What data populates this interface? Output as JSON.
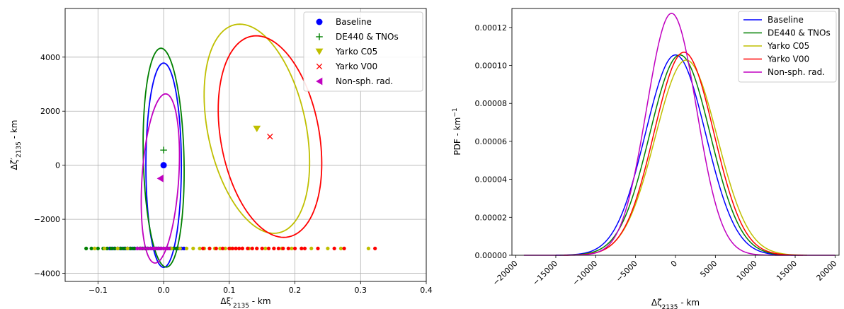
{
  "chart_data": [
    {
      "type": "scatter",
      "xlabel": "Δξ′2135 - km",
      "ylabel": "Δζ′2135 - km",
      "xlim": [
        -0.15,
        0.4
      ],
      "ylim": [
        -4300,
        5800
      ],
      "xticks": [
        -0.1,
        0.0,
        0.1,
        0.2,
        0.3,
        0.4
      ],
      "xtick_labels": [
        "−0.1",
        "0.0",
        "0.1",
        "0.2",
        "0.3",
        "0.4"
      ],
      "yticks": [
        -4000,
        -2000,
        0,
        2000,
        4000
      ],
      "ytick_labels": [
        "−4000",
        "−2000",
        "0",
        "2000",
        "4000"
      ],
      "grid": true,
      "legend_position": "top-right",
      "series": [
        {
          "name": "Baseline",
          "color": "#0000ff",
          "marker": "circle",
          "point": [
            0.0,
            0
          ],
          "ellipse": {
            "cx": 0.0,
            "cy": 0,
            "top": [
              0.0,
              3780
            ],
            "bottom": [
              0.0,
              -3780
            ],
            "right": [
              0.027,
              0
            ],
            "left": [
              -0.027,
              0
            ]
          },
          "samples_y": -3080,
          "samples_x": [
            -0.082,
            -0.078,
            -0.074,
            -0.07,
            -0.066,
            -0.062,
            -0.058,
            -0.055,
            -0.051,
            -0.047,
            -0.044,
            -0.04,
            -0.036,
            -0.033,
            -0.03,
            -0.027,
            -0.024,
            -0.02,
            -0.017,
            -0.014,
            -0.01,
            -0.007,
            -0.004,
            0.0,
            0.004,
            0.008,
            0.011,
            0.015,
            0.019,
            0.023,
            0.027,
            0.031
          ]
        },
        {
          "name": "DE440 & TNOs",
          "color": "#008000",
          "marker": "plus",
          "point": [
            0.0,
            560
          ],
          "ellipse": {
            "cx": 0.0,
            "cy": 280,
            "top": [
              -0.004,
              4330
            ],
            "bottom": [
              0.004,
              -3760
            ],
            "right": [
              0.031,
              280
            ],
            "left": [
              -0.031,
              280
            ]
          },
          "samples_y": -3080,
          "samples_x": [
            -0.118,
            -0.11,
            -0.1,
            -0.092,
            -0.086,
            -0.08,
            -0.075,
            -0.07,
            -0.065,
            -0.06,
            -0.055,
            -0.05,
            -0.045,
            -0.04,
            -0.036,
            -0.032,
            -0.028,
            -0.024,
            -0.02,
            -0.016,
            -0.012,
            -0.008,
            -0.004,
            0.0,
            0.005,
            0.01,
            0.015,
            0.02
          ]
        },
        {
          "name": "Yarko C05",
          "color": "#bfbf00",
          "marker": "triangle-down",
          "point": [
            0.142,
            1350
          ],
          "ellipse": {
            "cx": 0.142,
            "cy": 1350,
            "top": [
              0.116,
              5220
            ],
            "bottom": [
              0.168,
              -2520
            ],
            "right": [
              0.218,
              1350
            ],
            "left": [
              0.066,
              1350
            ]
          },
          "samples_y": -3080,
          "samples_x": [
            -0.105,
            -0.09,
            -0.07,
            -0.055,
            -0.035,
            -0.015,
            0.0,
            0.012,
            0.025,
            0.035,
            0.045,
            0.055,
            0.062,
            0.07,
            0.078,
            0.086,
            0.094,
            0.102,
            0.11,
            0.12,
            0.13,
            0.142,
            0.155,
            0.168,
            0.18,
            0.195,
            0.21,
            0.225,
            0.25,
            0.27,
            0.312
          ]
        },
        {
          "name": "Yarko V00",
          "color": "#ff0000",
          "marker": "x",
          "point": [
            0.162,
            1060
          ],
          "ellipse": {
            "cx": 0.162,
            "cy": 1060,
            "top": [
              0.141,
              4790
            ],
            "bottom": [
              0.183,
              -2670
            ],
            "right": [
              0.238,
              1060
            ],
            "left": [
              0.086,
              1060
            ]
          },
          "samples_y": -3080,
          "samples_x": [
            0.06,
            0.07,
            0.08,
            0.09,
            0.1,
            0.105,
            0.11,
            0.115,
            0.12,
            0.128,
            0.135,
            0.142,
            0.15,
            0.16,
            0.168,
            0.175,
            0.182,
            0.19,
            0.2,
            0.21,
            0.215,
            0.235,
            0.26,
            0.275,
            0.322
          ]
        },
        {
          "name": "Non-sph. rad.",
          "color": "#c000c0",
          "marker": "triangle-left",
          "point": [
            -0.005,
            -490
          ],
          "ellipse": {
            "cx": -0.005,
            "cy": -490,
            "top": [
              0.003,
              2640
            ],
            "bottom": [
              -0.013,
              -3620
            ],
            "right": [
              0.023,
              -490
            ],
            "left": [
              -0.033,
              -490
            ]
          },
          "samples_y": -3080,
          "samples_x": [
            -0.04,
            -0.035,
            -0.03,
            -0.025,
            -0.02,
            -0.016,
            -0.012,
            -0.008,
            -0.004,
            0.0,
            0.004,
            0.008
          ]
        }
      ]
    },
    {
      "type": "line",
      "xlabel": "Δζ2135 - km",
      "ylabel": "PDF - km−1",
      "xlim": [
        -20500,
        20500
      ],
      "ylim": [
        0,
        0.00013
      ],
      "xticks": [
        -20000,
        -15000,
        -10000,
        -5000,
        0,
        5000,
        10000,
        15000,
        20000
      ],
      "xtick_labels": [
        "−20000",
        "−15000",
        "−10000",
        "−5000",
        "0",
        "5000",
        "10000",
        "15000",
        "20000"
      ],
      "yticks": [
        0,
        2e-05,
        4e-05,
        6e-05,
        8e-05,
        0.0001,
        0.00012
      ],
      "ytick_labels": [
        "0.00000",
        "0.00002",
        "0.00004",
        "0.00006",
        "0.00008",
        "0.00010",
        "0.00012"
      ],
      "grid": false,
      "legend_position": "top-right",
      "series": [
        {
          "name": "Baseline",
          "color": "#0000ff",
          "mean": 0,
          "sigma": 3780,
          "range": [
            -15000,
            15000
          ]
        },
        {
          "name": "DE440 & TNOs",
          "color": "#008000",
          "mean": 560,
          "sigma": 3780,
          "range": [
            -14500,
            15500
          ]
        },
        {
          "name": "Yarko C05",
          "color": "#bfbf00",
          "mean": 1350,
          "sigma": 3880,
          "range": [
            -14000,
            16500
          ]
        },
        {
          "name": "Yarko V00",
          "color": "#ff0000",
          "mean": 1060,
          "sigma": 3730,
          "range": [
            -14000,
            16000
          ]
        },
        {
          "name": "Non-sph. rad.",
          "color": "#c000c0",
          "mean": -490,
          "sigma": 3130,
          "range": [
            -19000,
            20000
          ]
        }
      ]
    }
  ]
}
